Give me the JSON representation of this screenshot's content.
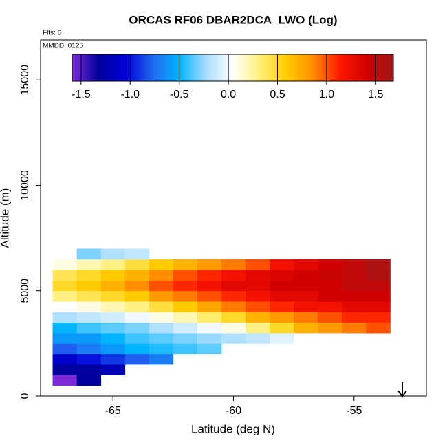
{
  "chart_data": {
    "type": "heatmap",
    "title": "ORCAS RF06 DBAR2DCA_LWO (Log)",
    "annotations": [
      "Flts: 6",
      "MMDD: 0125"
    ],
    "x_label": "Latitude (deg N)",
    "y_label": "Altitude (m)",
    "xlim": [
      -68,
      -52
    ],
    "xticks": [
      -65,
      -60,
      -55
    ],
    "ylim": [
      0,
      16900
    ],
    "yticks": [
      0,
      5000,
      10000,
      15000
    ],
    "x_edges": [
      -67.5,
      -66.5,
      -65.5,
      -64.5,
      -63.5,
      -62.5,
      -61.5,
      -60.5,
      -59.5,
      -58.5,
      -57.5,
      -56.5,
      -55.5,
      -54.5,
      -53.5
    ],
    "y_edges": [
      500,
      1000,
      1500,
      2000,
      2500,
      3000,
      3500,
      4000,
      4500,
      5000,
      5500,
      6000,
      6500,
      7000
    ],
    "z": [
      [
        -1.6,
        -1.3,
        null,
        null,
        null,
        null,
        null,
        null,
        null,
        null,
        null,
        null,
        null,
        null
      ],
      [
        -1.3,
        -1.3,
        -1.2,
        null,
        null,
        null,
        null,
        null,
        null,
        null,
        null,
        null,
        null,
        null
      ],
      [
        -1.1,
        -1.0,
        -0.9,
        -0.8,
        -0.7,
        null,
        null,
        null,
        null,
        null,
        null,
        null,
        null,
        null
      ],
      [
        -0.8,
        -0.7,
        -0.6,
        -0.5,
        -0.45,
        -0.4,
        -0.35,
        null,
        null,
        null,
        null,
        null,
        null,
        null
      ],
      [
        -0.6,
        -0.6,
        -0.5,
        -0.4,
        -0.35,
        -0.3,
        -0.25,
        -0.2,
        -0.15,
        -0.05,
        0.05,
        null,
        null,
        null
      ],
      [
        -0.5,
        -0.4,
        -0.35,
        -0.3,
        -0.2,
        -0.1,
        0,
        0.1,
        0.3,
        0.5,
        0.7,
        0.8,
        0.9,
        1.0
      ],
      [
        -0.2,
        -0.15,
        -0.1,
        0,
        0.1,
        0.2,
        0.35,
        0.5,
        0.7,
        0.8,
        0.9,
        1.0,
        1.1,
        1.1
      ],
      [
        0.05,
        0.1,
        0.2,
        0.3,
        0.45,
        0.6,
        0.75,
        0.9,
        1.0,
        1.1,
        1.2,
        1.2,
        1.3,
        1.3
      ],
      [
        0.3,
        0.4,
        0.5,
        0.6,
        0.8,
        0.9,
        1.0,
        1.1,
        1.2,
        1.3,
        1.3,
        1.4,
        1.4,
        1.4
      ],
      [
        0.5,
        0.6,
        0.7,
        0.85,
        1.0,
        1.1,
        1.2,
        1.3,
        1.3,
        1.4,
        1.4,
        1.4,
        1.5,
        1.5
      ],
      [
        0.4,
        0.5,
        0.6,
        0.7,
        0.85,
        1.0,
        1.1,
        1.2,
        1.3,
        1.35,
        1.4,
        1.45,
        1.5,
        1.6
      ],
      [
        0.1,
        0.2,
        0.3,
        0.45,
        0.6,
        0.7,
        0.8,
        0.9,
        1.0,
        1.2,
        1.3,
        1.4,
        1.5,
        1.6
      ],
      [
        null,
        -0.3,
        -0.2,
        -0.15,
        null,
        null,
        null,
        null,
        null,
        null,
        null,
        null,
        null,
        null
      ]
    ],
    "zlim": [
      -1.59,
      1.68
    ],
    "zticks": [
      -1.5,
      {
        "value": -1.0,
        "label": "-1.0"
      },
      -0.5,
      {
        "value": 0,
        "label": "0.0"
      },
      0.5,
      {
        "value": 1.0,
        "label": "1.0"
      },
      1.5
    ],
    "colormap": [
      "#7b2ad8",
      "#00009a",
      "#0000d8",
      "#2268f0",
      "#00b4ff",
      "#a8ddff",
      "#ffffff",
      "#fff07a",
      "#ffcc00",
      "#ff8c00",
      "#ff1800",
      "#d00000",
      "#a01a1a"
    ]
  }
}
